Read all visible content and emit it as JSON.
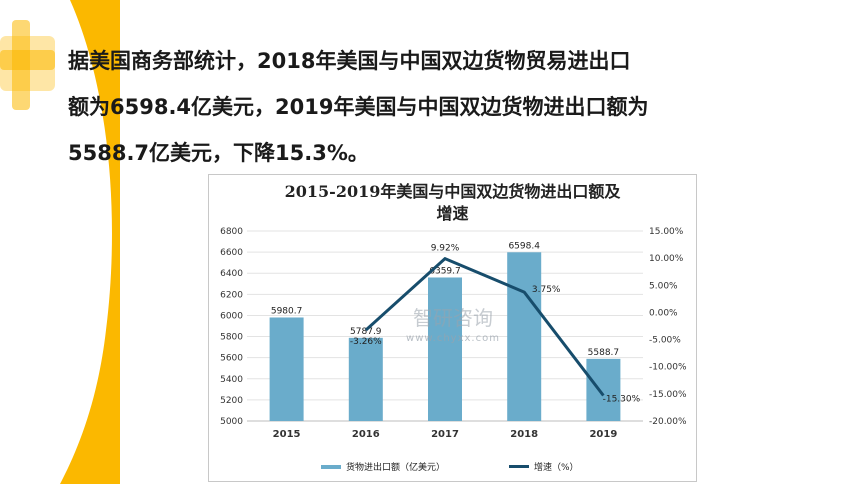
{
  "intro": {
    "line1": "据美国商务部统计，2018年美国与中国双边货物贸易进出口",
    "line2": "额为6598.4亿美元，2019年美国与中国双边货物进出口额为",
    "line3": "5588.7亿美元，下降15.3%。"
  },
  "colors": {
    "accent_yellow": "#fbb800",
    "bar": "#6aaccb",
    "line": "#174d6c"
  },
  "watermark": {
    "brand": "智研咨询",
    "url": "www.chyxx.com"
  },
  "chart_data": {
    "type": "bar",
    "title_line1": "2015-2019年美国与中国双边货物进出口额及",
    "title_line2": "增速",
    "categories": [
      "2015",
      "2016",
      "2017",
      "2018",
      "2019"
    ],
    "series": [
      {
        "name": "货物进出口额（亿美元）",
        "type": "bar",
        "axis": "left",
        "values": [
          5980.7,
          5787.9,
          6359.7,
          6598.4,
          5588.7
        ],
        "labels": [
          "5980.7",
          "5787.9",
          "6359.7",
          "6598.4",
          "5588.7"
        ]
      },
      {
        "name": "增速（%）",
        "type": "line",
        "axis": "right",
        "values": [
          null,
          -3.26,
          9.92,
          3.75,
          -15.3
        ],
        "labels": [
          "",
          "-3.26%",
          "9.92%",
          "3.75%",
          "-15.30%"
        ]
      }
    ],
    "yLeft": {
      "min": 5000,
      "max": 6800,
      "ticks": [
        "5000",
        "5200",
        "5400",
        "5600",
        "5800",
        "6000",
        "6200",
        "6400",
        "6600",
        "6800"
      ]
    },
    "yRight": {
      "min": -20,
      "max": 15,
      "ticks": [
        "-20.00%",
        "-15.00%",
        "-10.00%",
        "-5.00%",
        "0.00%",
        "5.00%",
        "10.00%",
        "15.00%"
      ]
    },
    "grid": true,
    "legend": "bottom"
  }
}
